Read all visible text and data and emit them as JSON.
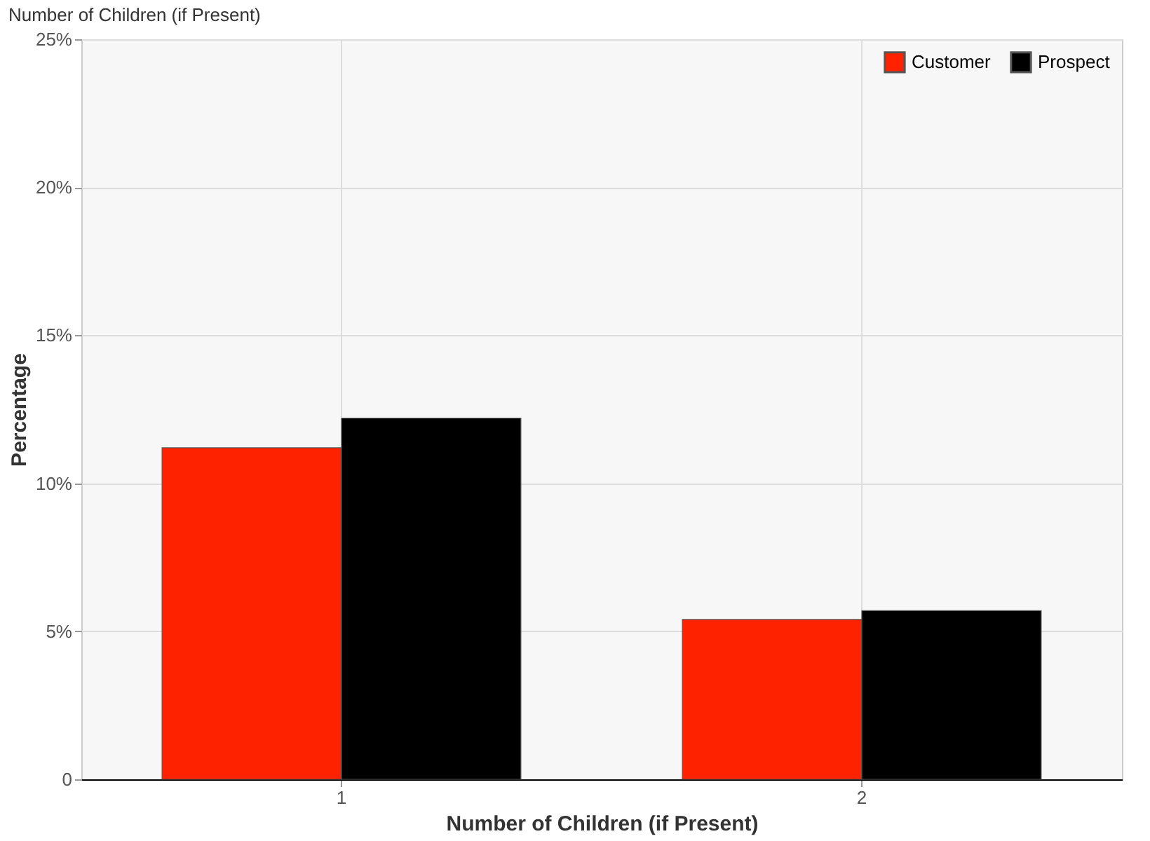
{
  "chart_data": {
    "type": "bar",
    "title": "Number of Children (if Present)",
    "xlabel": "Number of Children (if Present)",
    "ylabel": "Percentage",
    "categories": [
      "1",
      "2"
    ],
    "series": [
      {
        "name": "Customer",
        "color": "#ff2200",
        "values": [
          11.2,
          5.4
        ]
      },
      {
        "name": "Prospect",
        "color": "#000000",
        "values": [
          12.2,
          5.7
        ]
      }
    ],
    "ylim": [
      0,
      25
    ],
    "yticks": [
      {
        "value": 0,
        "label": "0"
      },
      {
        "value": 5,
        "label": "5%"
      },
      {
        "value": 10,
        "label": "10%"
      },
      {
        "value": 15,
        "label": "15%"
      },
      {
        "value": 20,
        "label": "20%"
      },
      {
        "value": 25,
        "label": "25%"
      }
    ],
    "grid": true,
    "legend": "top right"
  }
}
